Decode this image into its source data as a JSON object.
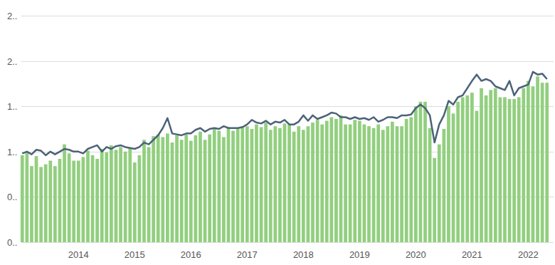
{
  "chart_data": {
    "type": "bar",
    "categories": [
      null,
      null,
      null,
      null,
      null,
      null,
      null,
      null,
      null,
      null,
      null,
      null,
      "2014",
      null,
      null,
      null,
      null,
      null,
      null,
      null,
      null,
      null,
      null,
      null,
      "2015",
      null,
      null,
      null,
      null,
      null,
      null,
      null,
      null,
      null,
      null,
      null,
      "2016",
      null,
      null,
      null,
      null,
      null,
      null,
      null,
      null,
      null,
      null,
      null,
      "2017",
      null,
      null,
      null,
      null,
      null,
      null,
      null,
      null,
      null,
      null,
      null,
      "2018",
      null,
      null,
      null,
      null,
      null,
      null,
      null,
      null,
      null,
      null,
      null,
      "2019",
      null,
      null,
      null,
      null,
      null,
      null,
      null,
      null,
      null,
      null,
      null,
      "2020",
      null,
      null,
      null,
      null,
      null,
      null,
      null,
      null,
      null,
      null,
      null,
      "2021",
      null,
      null,
      null,
      null,
      null,
      null,
      null,
      null,
      null,
      null,
      null,
      "2022",
      null,
      null,
      null,
      null
    ],
    "series": [
      {
        "type": "bar",
        "color": "#92cf7f",
        "values": [
          0.96,
          0.99,
          0.84,
          0.95,
          0.83,
          0.86,
          0.9,
          0.84,
          0.92,
          1.08,
          0.98,
          0.9,
          0.9,
          0.94,
          1.01,
          0.96,
          0.92,
          1.03,
          0.99,
          1.07,
          1.02,
          1.05,
          1.0,
          1.04,
          0.88,
          0.96,
          1.13,
          1.05,
          1.17,
          1.19,
          1.16,
          1.2,
          1.1,
          1.18,
          1.13,
          1.19,
          1.12,
          1.18,
          1.22,
          1.13,
          1.19,
          1.25,
          1.23,
          1.16,
          1.27,
          1.23,
          1.26,
          1.28,
          1.28,
          1.25,
          1.3,
          1.27,
          1.32,
          1.24,
          1.28,
          1.26,
          1.31,
          1.3,
          1.22,
          1.28,
          1.24,
          1.28,
          1.32,
          1.35,
          1.3,
          1.34,
          1.38,
          1.36,
          1.4,
          1.3,
          1.3,
          1.35,
          1.34,
          1.3,
          1.28,
          1.26,
          1.3,
          1.24,
          1.28,
          1.33,
          1.28,
          1.28,
          1.36,
          1.38,
          1.5,
          1.55,
          1.55,
          1.26,
          0.93,
          1.08,
          1.25,
          1.5,
          1.42,
          1.55,
          1.6,
          1.62,
          1.65,
          1.45,
          1.7,
          1.62,
          1.68,
          1.7,
          1.6,
          1.6,
          1.58,
          1.58,
          1.6,
          1.7,
          1.78,
          1.72,
          1.83,
          1.76,
          1.76
        ]
      },
      {
        "type": "line",
        "color": "#4b6279",
        "values": [
          0.98,
          1.0,
          0.97,
          1.02,
          1.01,
          0.96,
          1.0,
          0.97,
          1.0,
          1.03,
          1.02,
          1.0,
          1.0,
          0.98,
          1.03,
          1.05,
          1.07,
          1.0,
          1.05,
          1.03,
          1.06,
          1.07,
          1.05,
          1.04,
          1.03,
          1.05,
          1.1,
          1.08,
          1.13,
          1.18,
          1.26,
          1.37,
          1.2,
          1.19,
          1.18,
          1.2,
          1.2,
          1.24,
          1.26,
          1.22,
          1.25,
          1.26,
          1.25,
          1.28,
          1.26,
          1.26,
          1.26,
          1.27,
          1.3,
          1.35,
          1.32,
          1.31,
          1.34,
          1.3,
          1.33,
          1.32,
          1.35,
          1.3,
          1.3,
          1.33,
          1.4,
          1.34,
          1.4,
          1.36,
          1.38,
          1.4,
          1.43,
          1.42,
          1.38,
          1.38,
          1.36,
          1.38,
          1.36,
          1.37,
          1.35,
          1.38,
          1.33,
          1.35,
          1.38,
          1.38,
          1.37,
          1.4,
          1.4,
          1.41,
          1.48,
          1.52,
          1.48,
          1.4,
          1.1,
          1.3,
          1.4,
          1.56,
          1.52,
          1.6,
          1.62,
          1.7,
          1.78,
          1.85,
          1.78,
          1.8,
          1.78,
          1.72,
          1.7,
          1.68,
          1.78,
          1.62,
          1.7,
          1.72,
          1.74,
          1.88,
          1.85,
          1.86,
          1.8
        ]
      }
    ],
    "ylim": [
      0,
      2.5
    ],
    "yticks": [
      {
        "value": 0,
        "label": "0.."
      },
      {
        "value": 0.5,
        "label": "0.."
      },
      {
        "value": 1,
        "label": "1.."
      },
      {
        "value": 1.5,
        "label": "1.."
      },
      {
        "value": 2,
        "label": "2.."
      },
      {
        "value": 2.5,
        "label": "2.."
      }
    ],
    "grid": true
  }
}
